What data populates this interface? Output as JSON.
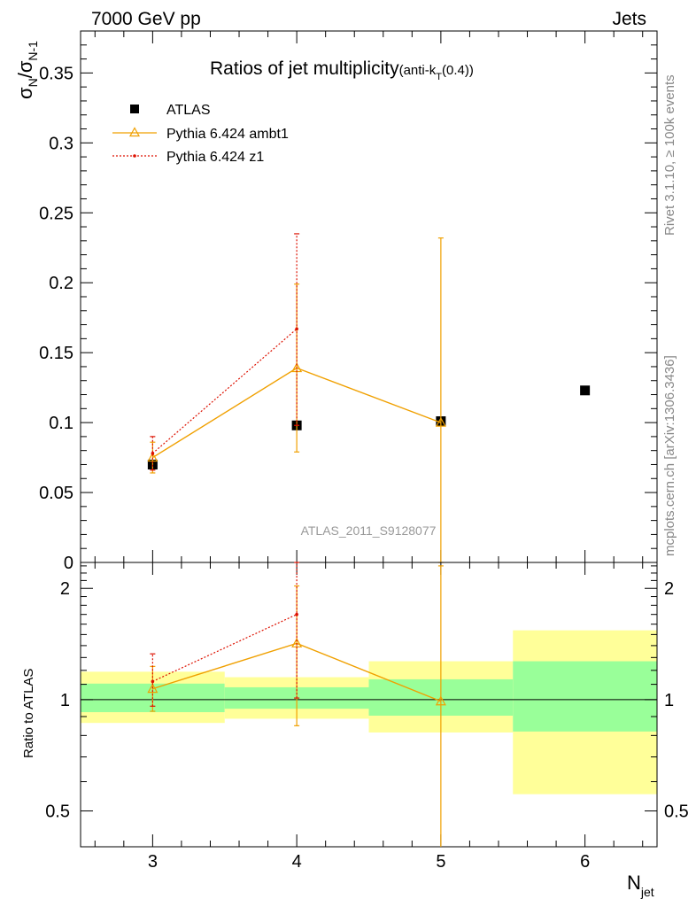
{
  "header": {
    "left": "7000 GeV pp",
    "right": "Jets"
  },
  "side_text": {
    "rivet": "Rivet 3.1.10, ≥ 100k events",
    "mcplots": "mcplots.cern.ch [arXiv:1306.3436]"
  },
  "watermark": "ATLAS_2011_S9128077",
  "colors": {
    "atlas": "#000000",
    "ambt1": "#f0a000",
    "z1": "#dd1100",
    "band_inner": "#99ff99",
    "band_outer": "#ffff99"
  },
  "chart_data": [
    {
      "type": "scatter",
      "panel": "main",
      "title": "Ratios of jet multiplicity",
      "title_suffix": "(anti-k",
      "title_sub": "T",
      "title_tail": "(0.4))",
      "ylabel": "σN/σN-1",
      "ylim": [
        0,
        0.38
      ],
      "xlim": [
        2.5,
        6.5
      ],
      "yticks": [
        0,
        0.05,
        0.1,
        0.15,
        0.2,
        0.25,
        0.3,
        0.35
      ],
      "ytick_labels": [
        "0",
        "0.05",
        "0.1",
        "0.15",
        "0.2",
        "0.25",
        "0.3",
        "0.35"
      ],
      "legend": [
        "ATLAS",
        "Pythia 6.424 ambt1",
        "Pythia 6.424 z1"
      ],
      "series": [
        {
          "name": "ATLAS",
          "style": "square",
          "x": [
            3,
            4,
            5,
            6
          ],
          "y": [
            0.07,
            0.098,
            0.101,
            0.123
          ]
        },
        {
          "name": "Pythia 6.424 ambt1",
          "style": "triangle-line",
          "x": [
            3,
            4,
            5
          ],
          "y": [
            0.075,
            0.139,
            0.1
          ],
          "err_lo": [
            0.064,
            0.079,
            0.0
          ],
          "err_hi": [
            0.086,
            0.199,
            0.232
          ]
        },
        {
          "name": "Pythia 6.424 z1",
          "style": "dot-dotted",
          "x": [
            3,
            4
          ],
          "y": [
            0.078,
            0.167
          ],
          "err_lo": [
            0.066,
            0.098
          ],
          "err_hi": [
            0.09,
            0.235
          ]
        }
      ]
    },
    {
      "type": "scatter",
      "panel": "ratio",
      "ylabel": "Ratio to ATLAS",
      "xlabel": "N",
      "xlabel_sub": "jet",
      "ylim": [
        0.4,
        2.35
      ],
      "yscale": "log",
      "xticks": [
        3,
        4,
        5,
        6
      ],
      "xtick_labels": [
        "3",
        "4",
        "5",
        "6"
      ],
      "yticks": [
        0.5,
        1,
        2
      ],
      "ytick_labels": [
        "0.5",
        "1",
        "2"
      ],
      "bands": [
        {
          "x": [
            2.5,
            3.5
          ],
          "inner": [
            0.925,
            1.105
          ],
          "outer": [
            0.865,
            1.19
          ]
        },
        {
          "x": [
            3.5,
            4.5
          ],
          "inner": [
            0.945,
            1.08
          ],
          "outer": [
            0.888,
            1.15
          ]
        },
        {
          "x": [
            4.5,
            5.5
          ],
          "inner": [
            0.905,
            1.135
          ],
          "outer": [
            0.815,
            1.27
          ]
        },
        {
          "x": [
            5.5,
            6.5
          ],
          "inner": [
            0.82,
            1.27
          ],
          "outer": [
            0.555,
            1.54
          ]
        }
      ],
      "series": [
        {
          "name": "Pythia 6.424 ambt1",
          "style": "triangle-line",
          "x": [
            3,
            4,
            5
          ],
          "y": [
            1.07,
            1.42,
            0.99
          ],
          "err_lo": [
            0.93,
            0.85,
            0.0
          ],
          "err_hi": [
            1.23,
            2.03,
            2.3
          ]
        },
        {
          "name": "Pythia 6.424 z1",
          "style": "dot-dotted",
          "x": [
            3,
            4
          ],
          "y": [
            1.12,
            1.7
          ],
          "err_lo": [
            0.96,
            1.01
          ],
          "err_hi": [
            1.33,
            2.35
          ]
        }
      ]
    }
  ]
}
